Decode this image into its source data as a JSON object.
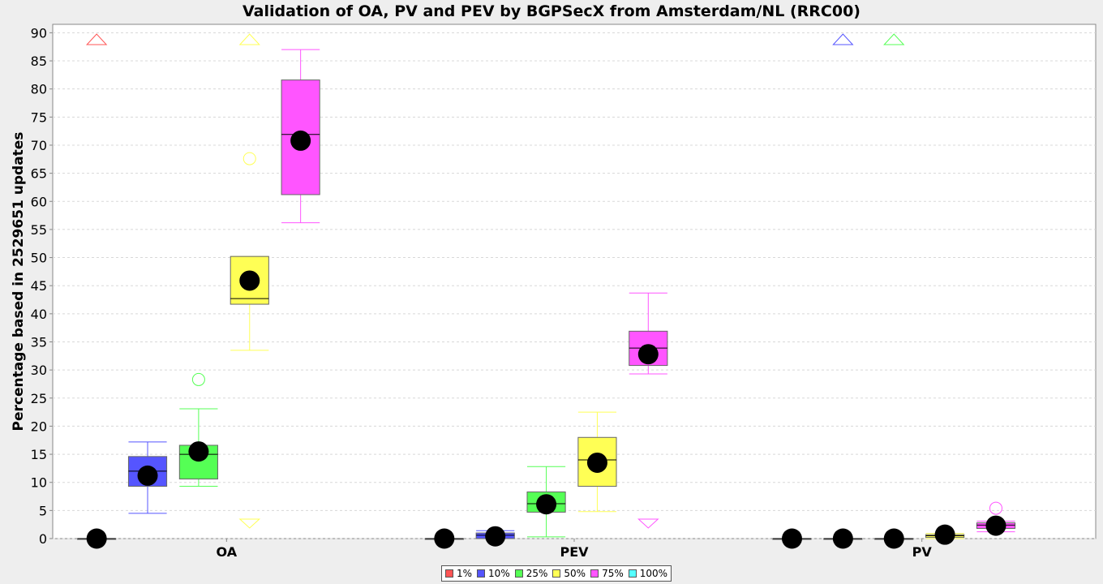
{
  "chart_data": {
    "type": "boxplot",
    "title": "Validation of OA, PV and PEV by BGPSecX from Amsterdam/NL (RRC00)",
    "ylabel": "Percentage based in 2529651 updates",
    "xlabel": "",
    "ylim": [
      0,
      91.5
    ],
    "yticks": [
      0,
      5,
      10,
      15,
      20,
      25,
      30,
      35,
      40,
      45,
      50,
      55,
      60,
      65,
      70,
      75,
      80,
      85,
      90
    ],
    "ytick_labels": [
      "0",
      "5",
      "10",
      "15",
      "20",
      "25",
      "30",
      "35",
      "40",
      "45",
      "50",
      "55",
      "60",
      "65",
      "70",
      "75",
      "80",
      "85",
      "90"
    ],
    "categories": [
      "OA",
      "PEV",
      "PV"
    ],
    "grid": true,
    "legend_position": "bottom",
    "series": [
      {
        "name": "1%",
        "color": "#ff5555",
        "boxes": [
          {
            "q1": 0,
            "median": 0,
            "q3": 0,
            "whisker_low": 0,
            "whisker_high": 0,
            "mean": 0,
            "outliers": [],
            "far_high": true,
            "far_low": false
          },
          {
            "q1": 0,
            "median": 0,
            "q3": 0,
            "whisker_low": 0,
            "whisker_high": 0,
            "mean": 0,
            "outliers": [],
            "far_high": false,
            "far_low": false
          },
          {
            "q1": 0,
            "median": 0,
            "q3": 0,
            "whisker_low": 0,
            "whisker_high": 0,
            "mean": 0,
            "outliers": [],
            "far_high": false,
            "far_low": false
          }
        ]
      },
      {
        "name": "10%",
        "color": "#5555ff",
        "boxes": [
          {
            "q1": 9.3,
            "median": 12.0,
            "q3": 14.6,
            "whisker_low": 4.5,
            "whisker_high": 17.2,
            "mean": 11.2,
            "outliers": [],
            "far_high": false,
            "far_low": false
          },
          {
            "q1": 0,
            "median": 0.6,
            "q3": 1.0,
            "whisker_low": 0,
            "whisker_high": 1.4,
            "mean": 0.4,
            "outliers": [],
            "far_high": false,
            "far_low": false
          },
          {
            "q1": 0,
            "median": 0,
            "q3": 0,
            "whisker_low": 0,
            "whisker_high": 0,
            "mean": 0,
            "outliers": [],
            "far_high": true,
            "far_low": false
          }
        ]
      },
      {
        "name": "25%",
        "color": "#55ff55",
        "boxes": [
          {
            "q1": 10.6,
            "median": 15.0,
            "q3": 16.6,
            "whisker_low": 9.3,
            "whisker_high": 23.1,
            "mean": 15.5,
            "outliers": [
              28.3
            ],
            "far_high": false,
            "far_low": false
          },
          {
            "q1": 4.7,
            "median": 6.2,
            "q3": 8.3,
            "whisker_low": 0.3,
            "whisker_high": 12.8,
            "mean": 6.1,
            "outliers": [],
            "far_high": false,
            "far_low": false
          },
          {
            "q1": 0,
            "median": 0,
            "q3": 0,
            "whisker_low": 0,
            "whisker_high": 0,
            "mean": 0,
            "outliers": [],
            "far_high": true,
            "far_low": false
          }
        ]
      },
      {
        "name": "50%",
        "color": "#ffff55",
        "boxes": [
          {
            "q1": 41.7,
            "median": 42.7,
            "q3": 50.2,
            "whisker_low": 33.5,
            "whisker_high": 50.2,
            "mean": 45.9,
            "outliers": [
              67.6
            ],
            "far_high": true,
            "far_low": true
          },
          {
            "q1": 9.3,
            "median": 14.0,
            "q3": 18.0,
            "whisker_low": 4.8,
            "whisker_high": 22.5,
            "mean": 13.5,
            "outliers": [],
            "far_high": false,
            "far_low": false
          },
          {
            "q1": 0.2,
            "median": 0.5,
            "q3": 0.7,
            "whisker_low": 0,
            "whisker_high": 0.9,
            "mean": 0.7,
            "outliers": [],
            "far_high": false,
            "far_low": false
          }
        ]
      },
      {
        "name": "75%",
        "color": "#ff55ff",
        "boxes": [
          {
            "q1": 61.2,
            "median": 71.9,
            "q3": 81.6,
            "whisker_low": 56.2,
            "whisker_high": 87.0,
            "mean": 70.8,
            "outliers": [],
            "far_high": false,
            "far_low": false
          },
          {
            "q1": 30.8,
            "median": 33.9,
            "q3": 36.9,
            "whisker_low": 29.3,
            "whisker_high": 43.7,
            "mean": 32.8,
            "outliers": [],
            "far_high": false,
            "far_low": true
          },
          {
            "q1": 1.8,
            "median": 2.4,
            "q3": 2.8,
            "whisker_low": 1.2,
            "whisker_high": 3.1,
            "mean": 2.3,
            "outliers": [
              5.4
            ],
            "far_high": false,
            "far_low": false
          }
        ]
      },
      {
        "name": "100%",
        "color": "#55ffff",
        "boxes": []
      }
    ]
  }
}
